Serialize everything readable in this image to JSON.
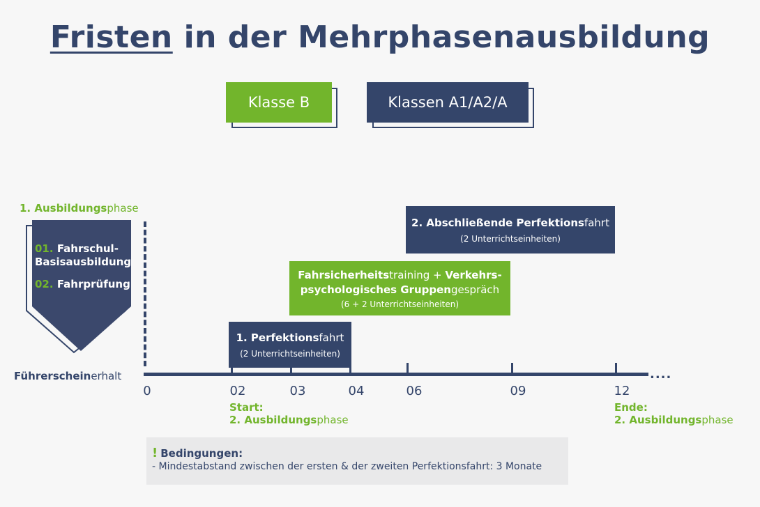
{
  "title": {
    "word_underlined": "Fristen",
    "rest": " in der Mehrphasenausbildung"
  },
  "tabs": [
    {
      "label": "Klasse B",
      "color": "#72b52c"
    },
    {
      "label": "Klassen A1/A2/A",
      "color": "#34456a"
    }
  ],
  "phase1": {
    "label_bold": "1. Ausbildungs",
    "label_rest": "phase",
    "items": [
      {
        "num": "01.",
        "line1": "Fahrschul-",
        "line2": "Basisausbildung"
      },
      {
        "num": "02.",
        "line1": "Fahrprüfung",
        "line2": ""
      }
    ]
  },
  "axis": {
    "start_label_bold": "Führerschein",
    "start_label_rest": "erhalt",
    "ticks": [
      "0",
      "02",
      "03",
      "04",
      "06",
      "09",
      "12"
    ],
    "continuation": "...."
  },
  "boxes": {
    "perf1": {
      "main_bold": "1. Perfektions",
      "main_rest": "fahrt",
      "sub": "(2  Unterrichtseinheiten)"
    },
    "training": {
      "line1_bold_a": "Fahrsicherheits",
      "line1_rest": "training + ",
      "line1_bold_b": "Verkehrs-",
      "line2_bold": "psychologisches Gruppen",
      "line2_rest": "gespräch",
      "sub": "(6  + 2 Unterrichtseinheiten)"
    },
    "perf2": {
      "main_bold": "2. Abschließende Perfektions",
      "main_rest": "fahrt",
      "sub": "(2 Unterrichtseinheiten)"
    }
  },
  "start": {
    "line1": "Start:",
    "line2_bold": "2. Ausbildungs",
    "line2_rest": "phase"
  },
  "end": {
    "line1": "Ende:",
    "line2_bold": "2. Ausbildungs",
    "line2_rest": "phase"
  },
  "conditions": {
    "excl": "!",
    "title": "Bedingungen:",
    "item": "- Mindestabstand zwischen der ersten & der zweiten Perfektionsfahrt: 3 Monate"
  },
  "colors": {
    "navy": "#34456a",
    "green": "#72b52c",
    "background": "#f7f7f7"
  }
}
